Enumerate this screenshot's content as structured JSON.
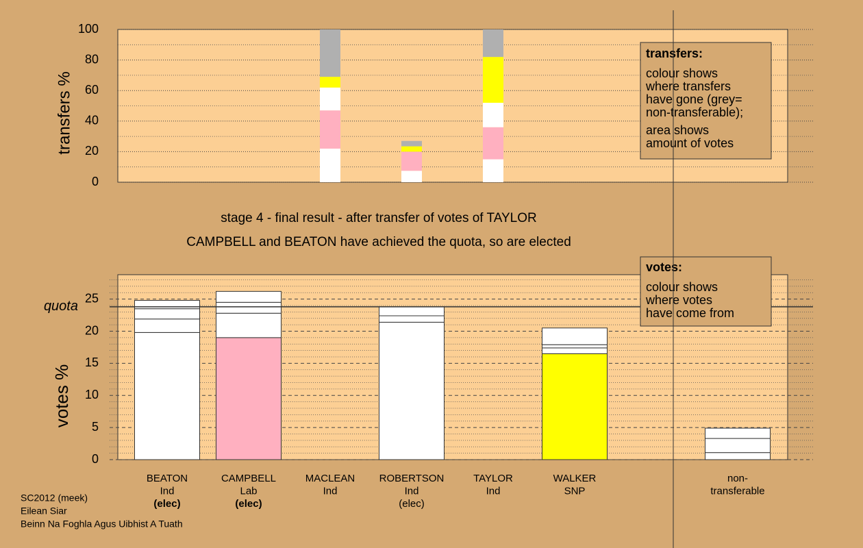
{
  "chart_data": [
    {
      "type": "stacked-bar",
      "ylabel": "transfers %",
      "ylim": [
        0,
        100
      ],
      "yticks": [
        0,
        20,
        40,
        60,
        80,
        100
      ],
      "minor_yticks": [
        10,
        30,
        50,
        70,
        90
      ],
      "grid": true,
      "legend": {
        "title": "transfers:",
        "lines": [
          "colour shows",
          "where transfers",
          "have gone (grey=",
          "non-transferable);",
          "area shows",
          "amount of votes"
        ]
      },
      "series": [
        {
          "color": "#ffffff",
          "values": [
            null,
            null,
            22,
            7.5,
            15,
            null,
            null
          ]
        },
        {
          "color": "#ffb0c0",
          "values": [
            null,
            null,
            25,
            12.5,
            21,
            null,
            null
          ]
        },
        {
          "color": "#ffffff",
          "values": [
            null,
            null,
            15,
            null,
            16,
            null,
            null
          ]
        },
        {
          "color": "#ffff00",
          "values": [
            null,
            null,
            7,
            3.5,
            30,
            null,
            null
          ]
        },
        {
          "color": "#b0b0b0",
          "values": [
            null,
            null,
            31,
            3.5,
            18,
            null,
            null
          ]
        }
      ]
    },
    {
      "type": "stacked-bar",
      "title": "stage 4 - final result - after transfer of votes of TAYLOR",
      "subtitle": "CAMPBELL and BEATON have achieved the quota, so are elected",
      "ylabel": "votes %",
      "ylim": [
        0,
        28.8
      ],
      "yticks": [
        0,
        5,
        10,
        15,
        20,
        25
      ],
      "minor_yticks": [
        1,
        2,
        3,
        4,
        6,
        7,
        8,
        9,
        11,
        12,
        13,
        14,
        16,
        17,
        18,
        19,
        21,
        22,
        23,
        24,
        26,
        27,
        28
      ],
      "grid": true,
      "quota": 23.8,
      "quota_label": "quota",
      "legend": {
        "title": "votes:",
        "lines": [
          "colour shows",
          "where votes",
          "have come from"
        ]
      },
      "category_lines": [
        [
          "BEATON",
          "Ind",
          "(elec)"
        ],
        [
          "CAMPBELL",
          "Lab",
          "(elec)"
        ],
        [
          "MACLEAN",
          "Ind"
        ],
        [
          "ROBERTSON",
          "Ind",
          "(elec)"
        ],
        [
          "TAYLOR",
          "Ind"
        ],
        [
          "WALKER",
          "SNP"
        ],
        [
          "non-",
          "transferable"
        ]
      ],
      "series": [
        {
          "colors": [
            "#ffffff",
            "#ffb0c0",
            null,
            "#ffffff",
            null,
            "#ffff00",
            "#ffffff"
          ],
          "values": [
            19.8,
            19.0,
            null,
            21.4,
            null,
            16.5,
            1.1
          ]
        },
        {
          "color": "#ffffff",
          "values": [
            2.1,
            3.8,
            null,
            1.0,
            null,
            0.9,
            2.2
          ]
        },
        {
          "color": "#ffffff",
          "values": [
            1.6,
            1.7,
            null,
            1.4,
            null,
            0.5,
            1.6
          ]
        },
        {
          "color": "#ffffff",
          "values": [
            1.3,
            1.7,
            null,
            null,
            null,
            2.6,
            null
          ]
        }
      ]
    }
  ],
  "footer": [
    "SC2012 (meek)",
    "Eilean Siar",
    "Beinn Na Foghla Agus Uibhist A Tuath"
  ]
}
